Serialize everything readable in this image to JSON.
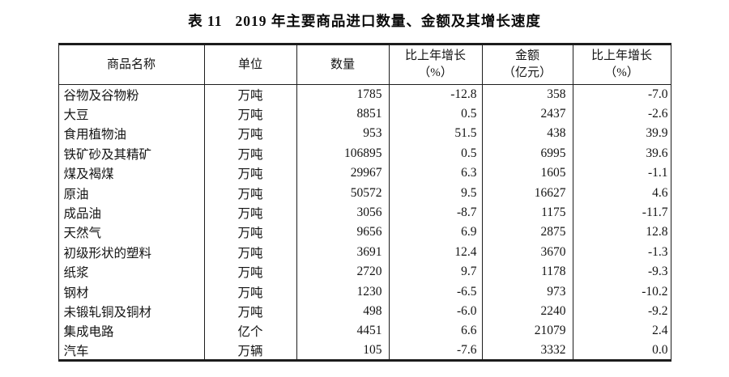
{
  "title": {
    "prefix": "表 11",
    "text": "2019 年主要商品进口数量、金额及其增长速度"
  },
  "table": {
    "headers": [
      {
        "line1": "商品名称",
        "line2": ""
      },
      {
        "line1": "单位",
        "line2": ""
      },
      {
        "line1": "数量",
        "line2": ""
      },
      {
        "line1": "比上年增长",
        "line2": "（%）"
      },
      {
        "line1": "金额",
        "line2": "（亿元）"
      },
      {
        "line1": "比上年增长",
        "line2": "（%）"
      }
    ],
    "rows": [
      {
        "name": "谷物及谷物粉",
        "unit": "万吨",
        "quantity": "1785",
        "quantity_growth": "-12.8",
        "amount": "358",
        "amount_growth": "-7.0"
      },
      {
        "name": "大豆",
        "unit": "万吨",
        "quantity": "8851",
        "quantity_growth": "0.5",
        "amount": "2437",
        "amount_growth": "-2.6"
      },
      {
        "name": "食用植物油",
        "unit": "万吨",
        "quantity": "953",
        "quantity_growth": "51.5",
        "amount": "438",
        "amount_growth": "39.9"
      },
      {
        "name": "铁矿砂及其精矿",
        "unit": "万吨",
        "quantity": "106895",
        "quantity_growth": "0.5",
        "amount": "6995",
        "amount_growth": "39.6"
      },
      {
        "name": "煤及褐煤",
        "unit": "万吨",
        "quantity": "29967",
        "quantity_growth": "6.3",
        "amount": "1605",
        "amount_growth": "-1.1"
      },
      {
        "name": "原油",
        "unit": "万吨",
        "quantity": "50572",
        "quantity_growth": "9.5",
        "amount": "16627",
        "amount_growth": "4.6"
      },
      {
        "name": "成品油",
        "unit": "万吨",
        "quantity": "3056",
        "quantity_growth": "-8.7",
        "amount": "1175",
        "amount_growth": "-11.7"
      },
      {
        "name": "天然气",
        "unit": "万吨",
        "quantity": "9656",
        "quantity_growth": "6.9",
        "amount": "2875",
        "amount_growth": "12.8"
      },
      {
        "name": "初级形状的塑料",
        "unit": "万吨",
        "quantity": "3691",
        "quantity_growth": "12.4",
        "amount": "3670",
        "amount_growth": "-1.3"
      },
      {
        "name": "纸浆",
        "unit": "万吨",
        "quantity": "2720",
        "quantity_growth": "9.7",
        "amount": "1178",
        "amount_growth": "-9.3"
      },
      {
        "name": "钢材",
        "unit": "万吨",
        "quantity": "1230",
        "quantity_growth": "-6.5",
        "amount": "973",
        "amount_growth": "-10.2"
      },
      {
        "name": "未锻轧铜及铜材",
        "unit": "万吨",
        "quantity": "498",
        "quantity_growth": "-6.0",
        "amount": "2240",
        "amount_growth": "-9.2"
      },
      {
        "name": "集成电路",
        "unit": "亿个",
        "quantity": "4451",
        "quantity_growth": "6.6",
        "amount": "21079",
        "amount_growth": "2.4"
      },
      {
        "name": "汽车",
        "unit": "万辆",
        "quantity": "105",
        "quantity_growth": "-7.6",
        "amount": "3332",
        "amount_growth": "0.0"
      }
    ]
  }
}
